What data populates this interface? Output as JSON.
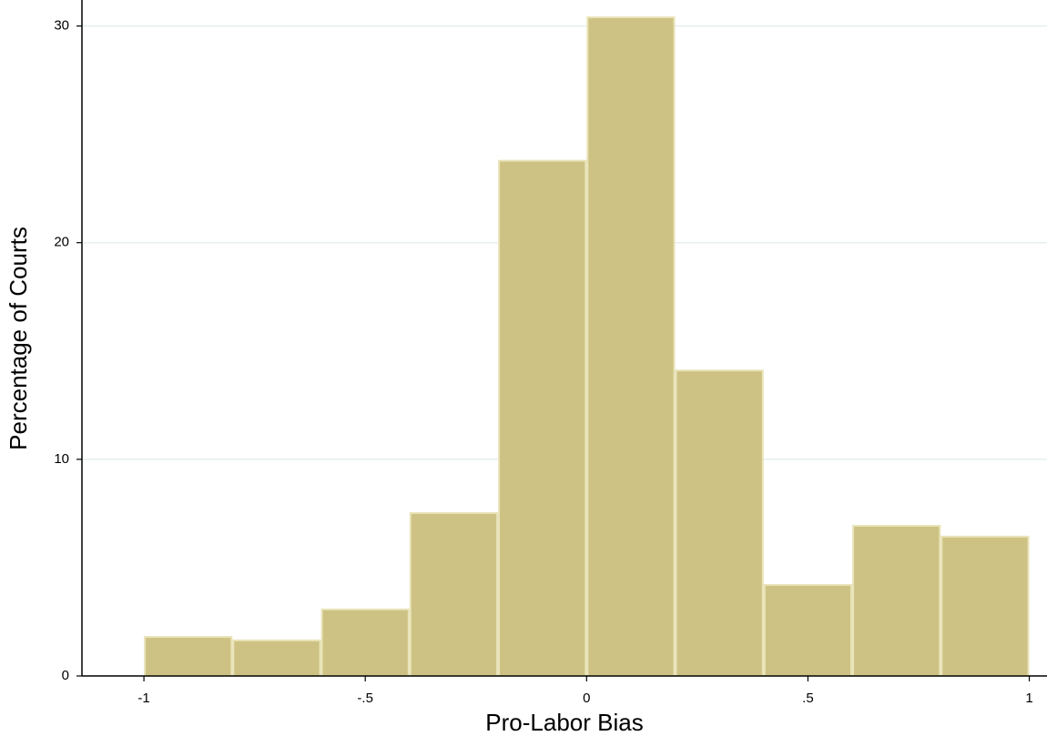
{
  "chart_data": {
    "type": "histogram",
    "x_label": "Pro-Labor Bias",
    "y_label": "Percentage of Courts",
    "bins": [
      -1,
      -0.8,
      -0.6,
      -0.4,
      -0.2,
      0,
      0.2,
      0.4,
      0.6,
      0.8,
      1
    ],
    "values": [
      1.8,
      1.64,
      3.07,
      7.52,
      23.78,
      30.4,
      14.1,
      4.2,
      6.93,
      6.43
    ],
    "color": "#cdc283",
    "edge_color": "#e9e3b8",
    "grid_color": "#e6eef0",
    "grid": true,
    "xlim": [
      -1.14,
      1.04
    ],
    "ylim": [
      0,
      31.2
    ],
    "xticks": [
      -1,
      {
        "value": -0.5,
        "label": "-.5"
      },
      0,
      {
        "value": 0.5,
        "label": ".5"
      },
      1
    ],
    "yticks": [
      0,
      10,
      20,
      30
    ]
  }
}
